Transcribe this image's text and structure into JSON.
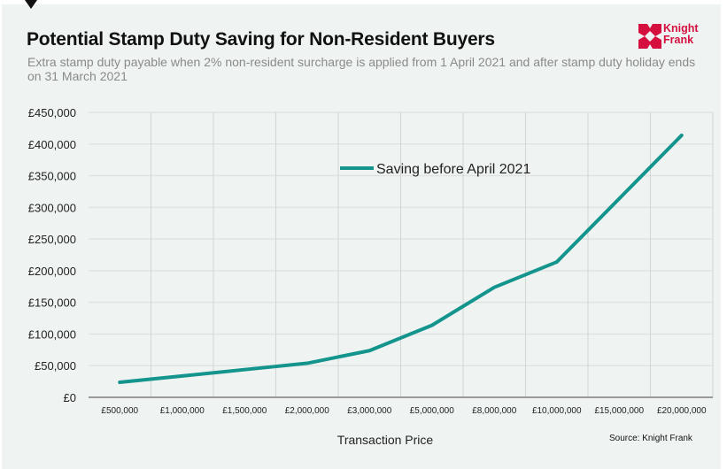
{
  "header": {
    "title": "Potential Stamp Duty Saving for Non-Resident Buyers",
    "subtitle": "Extra stamp duty payable when 2% non-resident surcharge is applied from 1 April 2021 and after stamp duty holiday ends on 31 March 2021",
    "logo_line1": "Knight",
    "logo_line2": "Frank",
    "brand_color": "#d5103f"
  },
  "footer": {
    "source": "Source: Knight Frank"
  },
  "chart_data": {
    "type": "line",
    "title": "Potential Stamp Duty Saving for Non-Resident Buyers",
    "xlabel": "Transaction Price",
    "ylabel": "",
    "categories": [
      "£500,000",
      "£1,000,000",
      "£1,500,000",
      "£2,000,000",
      "£3,000,000",
      "£5,000,000",
      "£8,000,000",
      "£10,000,000",
      "£15,000,000",
      "£20,000,000"
    ],
    "series": [
      {
        "name": "Saving before April 2021",
        "color": "#13948c",
        "values": [
          23750,
          33750,
          43750,
          53750,
          73750,
          113750,
          173750,
          213750,
          313750,
          413750
        ]
      }
    ],
    "ylim": [
      0,
      450000
    ],
    "yticks": [
      0,
      50000,
      100000,
      150000,
      200000,
      250000,
      300000,
      350000,
      400000,
      450000
    ],
    "ytick_labels": [
      "£0",
      "£50,000",
      "£100,000",
      "£150,000",
      "£200,000",
      "£250,000",
      "£300,000",
      "£350,000",
      "£400,000",
      "£450,000"
    ],
    "grid": true,
    "legend_position": "top-center"
  }
}
